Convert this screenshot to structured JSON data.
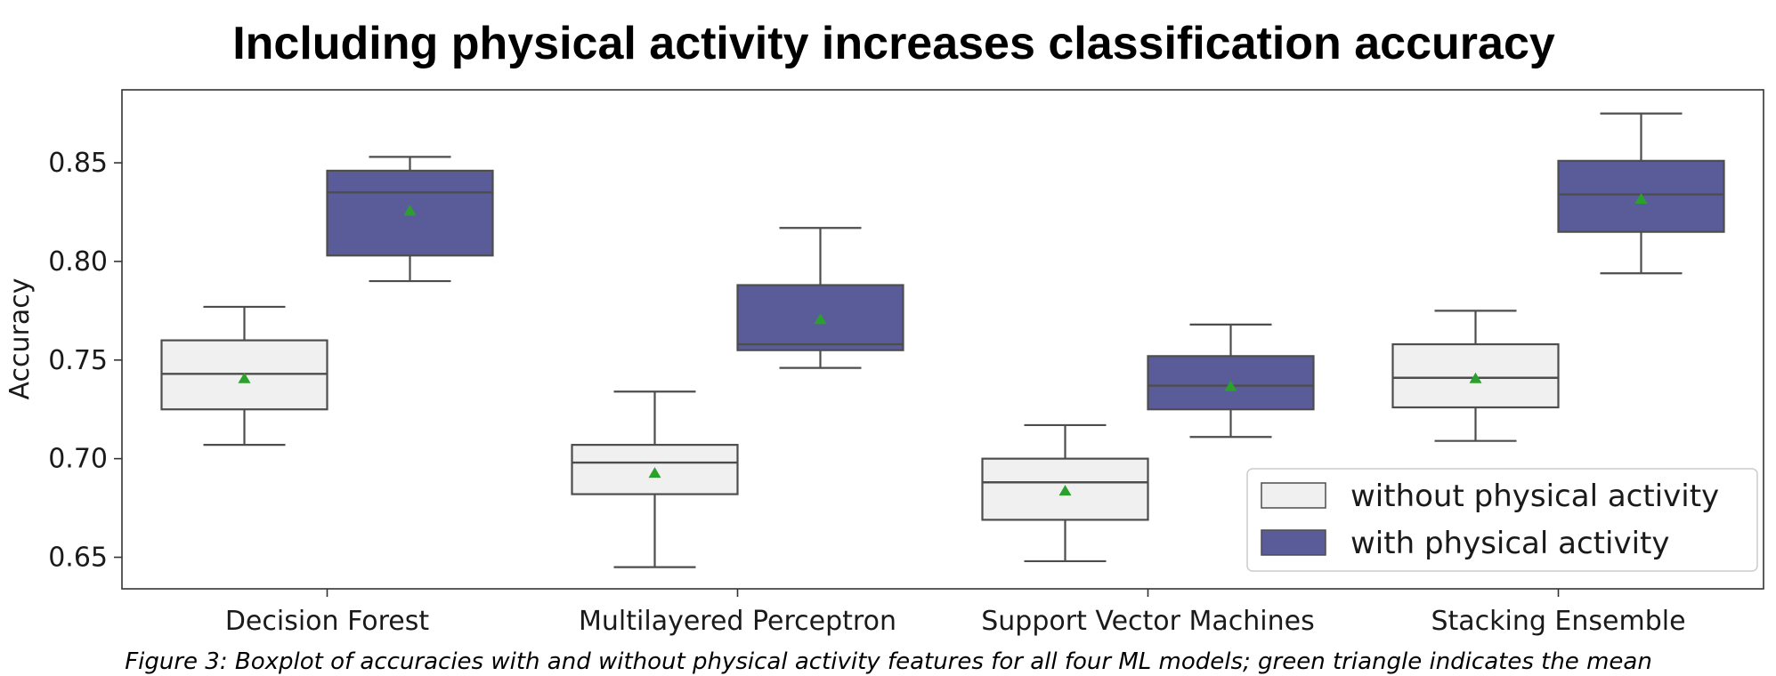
{
  "chart_data": {
    "type": "boxplot",
    "title": "Including physical activity increases classification accuracy",
    "ylabel": "Accuracy",
    "xlabel": "",
    "ylim": [
      0.634,
      0.887
    ],
    "yticks": [
      0.65,
      0.7,
      0.75,
      0.8,
      0.85
    ],
    "ytick_labels": [
      "0.65",
      "0.70",
      "0.75",
      "0.80",
      "0.85"
    ],
    "categories": [
      "Decision Forest",
      "Multilayered Perceptron",
      "Support Vector Machines",
      "Stacking Ensemble"
    ],
    "grid": false,
    "legend_position": "bottom-right",
    "series": [
      {
        "name": "without physical activity",
        "color": "#f0f0f0",
        "boxes": [
          {
            "whislo": 0.707,
            "q1": 0.725,
            "med": 0.743,
            "q3": 0.76,
            "whishi": 0.777,
            "mean": 0.741
          },
          {
            "whislo": 0.645,
            "q1": 0.682,
            "med": 0.698,
            "q3": 0.707,
            "whishi": 0.734,
            "mean": 0.693
          },
          {
            "whislo": 0.648,
            "q1": 0.669,
            "med": 0.688,
            "q3": 0.7,
            "whishi": 0.717,
            "mean": 0.684
          },
          {
            "whislo": 0.709,
            "q1": 0.726,
            "med": 0.741,
            "q3": 0.758,
            "whishi": 0.775,
            "mean": 0.741
          }
        ]
      },
      {
        "name": "with physical activity",
        "color": "#5a5c9a",
        "boxes": [
          {
            "whislo": 0.79,
            "q1": 0.803,
            "med": 0.835,
            "q3": 0.846,
            "whishi": 0.853,
            "mean": 0.826
          },
          {
            "whislo": 0.746,
            "q1": 0.755,
            "med": 0.758,
            "q3": 0.788,
            "whishi": 0.817,
            "mean": 0.771
          },
          {
            "whislo": 0.711,
            "q1": 0.725,
            "med": 0.737,
            "q3": 0.752,
            "whishi": 0.768,
            "mean": 0.737
          },
          {
            "whislo": 0.794,
            "q1": 0.815,
            "med": 0.834,
            "q3": 0.851,
            "whishi": 0.875,
            "mean": 0.832
          }
        ]
      }
    ],
    "mean_marker_color": "#2ca02c",
    "caption": "Figure 3: Boxplot of accuracies with and without physical activity features for all four ML models; green triangle indicates the mean"
  }
}
